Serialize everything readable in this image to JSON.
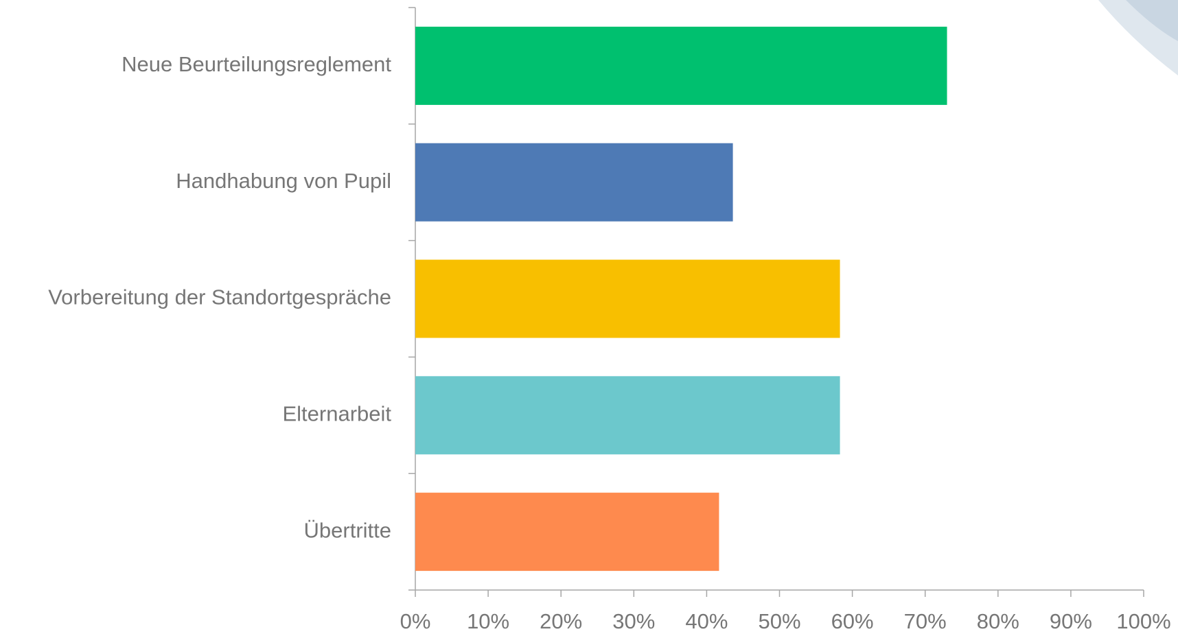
{
  "chart_data": {
    "type": "barh",
    "categories": [
      "Neue Beurteilungsreglement",
      "Handhabung von Pupil",
      "Vorbereitung der Standortgespräche",
      "Elternarbeit",
      "Übertritte"
    ],
    "values": [
      73,
      43.6,
      58.3,
      58.3,
      41.7
    ],
    "colors": [
      "#00c06f",
      "#4e7ab5",
      "#f8bf00",
      "#6cc8cc",
      "#fe8a4e"
    ],
    "xlim": [
      0,
      100
    ],
    "xticks": [
      {
        "value": 0,
        "label": "0%"
      },
      {
        "value": 10,
        "label": "10%"
      },
      {
        "value": 20,
        "label": "20%"
      },
      {
        "value": 30,
        "label": "30%"
      },
      {
        "value": 40,
        "label": "40%"
      },
      {
        "value": 50,
        "label": "50%"
      },
      {
        "value": 60,
        "label": "60%"
      },
      {
        "value": 70,
        "label": "70%"
      },
      {
        "value": 80,
        "label": "80%"
      },
      {
        "value": 90,
        "label": "90%"
      },
      {
        "value": 100,
        "label": "100%"
      }
    ]
  }
}
